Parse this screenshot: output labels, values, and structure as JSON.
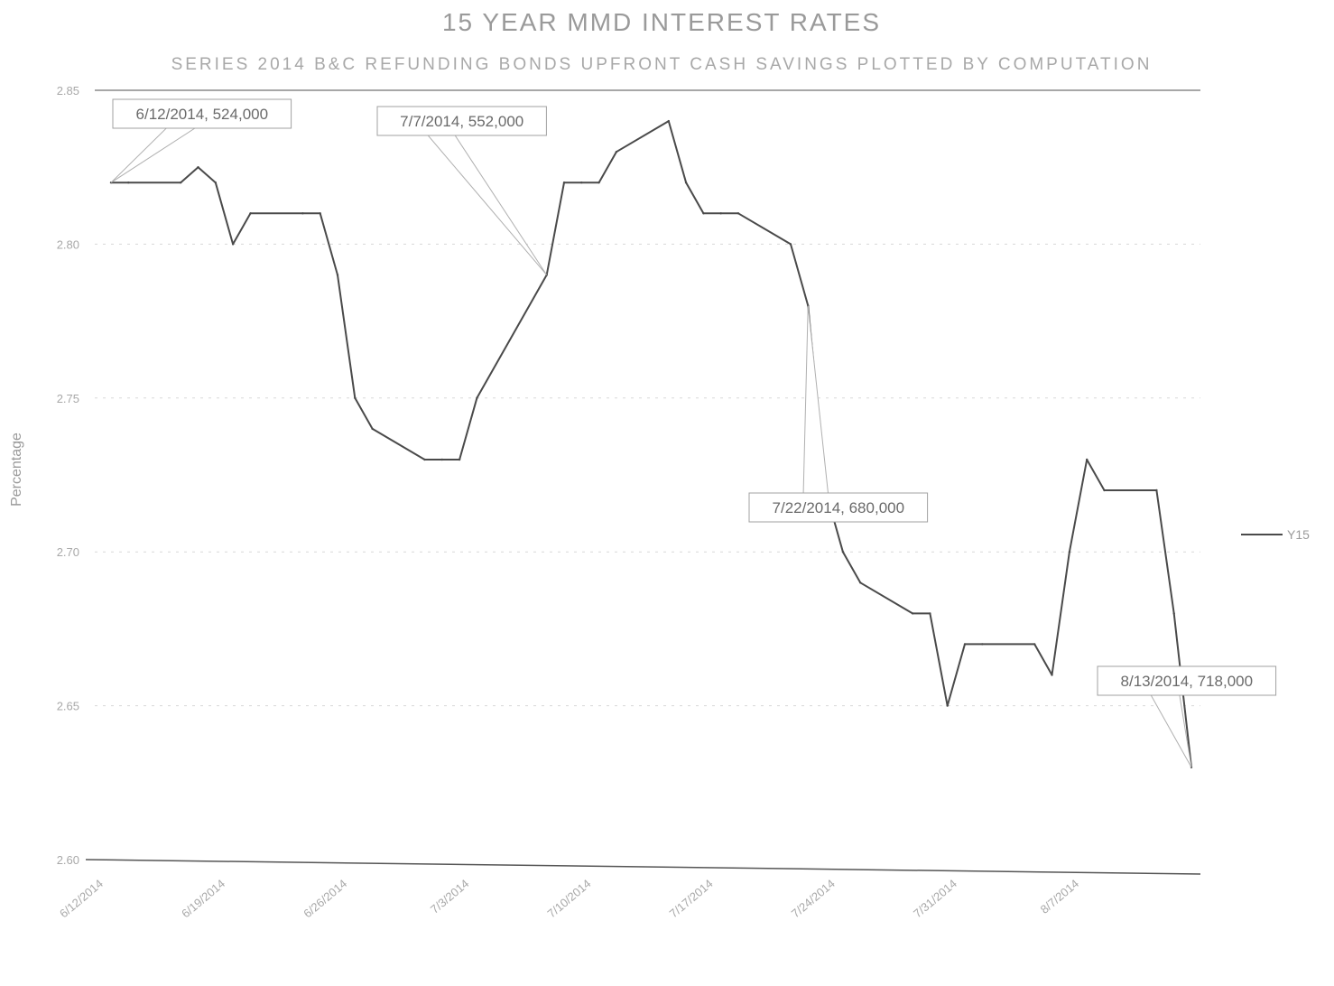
{
  "chart_data": {
    "type": "line",
    "title": "15 YEAR MMD INTEREST RATES",
    "subtitle": "SERIES 2014 B&C REFUNDING BONDS UPFRONT CASH SAVINGS PLOTTED BY COMPUTATION",
    "ylabel": "Percentage",
    "xlabel": "",
    "ylim": [
      2.6,
      2.85
    ],
    "yticks": [
      2.6,
      2.65,
      2.7,
      2.75,
      2.8,
      2.85
    ],
    "ytick_labels": [
      "2.60",
      "2.65",
      "2.70",
      "2.75",
      "2.80",
      "2.85"
    ],
    "xtick_labels": [
      "6/12/2014",
      "6/19/2014",
      "6/26/2014",
      "7/3/2014",
      "7/10/2014",
      "7/17/2014",
      "7/24/2014",
      "7/31/2014",
      "8/7/2014"
    ],
    "grid": true,
    "legend_position": "right",
    "series": [
      {
        "name": "Y15",
        "color": "#4a4a4a",
        "x": [
          "6/12/2014",
          "6/13/2014",
          "6/16/2014",
          "6/17/2014",
          "6/18/2014",
          "6/19/2014",
          "6/20/2014",
          "6/23/2014",
          "6/24/2014",
          "6/25/2014",
          "6/26/2014",
          "6/27/2014",
          "6/30/2014",
          "7/1/2014",
          "7/2/2014",
          "7/3/2014",
          "7/7/2014",
          "7/8/2014",
          "7/9/2014",
          "7/10/2014",
          "7/11/2014",
          "7/14/2014",
          "7/15/2014",
          "7/16/2014",
          "7/17/2014",
          "7/18/2014",
          "7/21/2014",
          "7/22/2014",
          "7/23/2014",
          "7/24/2014",
          "7/25/2014",
          "7/28/2014",
          "7/29/2014",
          "7/30/2014",
          "7/31/2014",
          "8/1/2014",
          "8/4/2014",
          "8/5/2014",
          "8/6/2014",
          "8/7/2014",
          "8/8/2014",
          "8/11/2014",
          "8/12/2014",
          "8/13/2014"
        ],
        "values": [
          2.82,
          2.82,
          2.82,
          2.825,
          2.82,
          2.8,
          2.81,
          2.81,
          2.81,
          2.79,
          2.75,
          2.74,
          2.73,
          2.73,
          2.73,
          2.75,
          2.79,
          2.82,
          2.82,
          2.82,
          2.83,
          2.84,
          2.82,
          2.81,
          2.81,
          2.81,
          2.8,
          2.78,
          2.72,
          2.7,
          2.69,
          2.68,
          2.68,
          2.65,
          2.67,
          2.67,
          2.67,
          2.66,
          2.7,
          2.73,
          2.72,
          2.72,
          2.68,
          2.63
        ]
      }
    ],
    "annotations": [
      {
        "x": "6/12/2014",
        "label": "6/12/2014, 524,000"
      },
      {
        "x": "7/7/2014",
        "label": "7/7/2014, 552,000"
      },
      {
        "x": "7/22/2014",
        "label": "7/22/2014, 680,000"
      },
      {
        "x": "8/13/2014",
        "label": "8/13/2014, 718,000"
      }
    ]
  }
}
